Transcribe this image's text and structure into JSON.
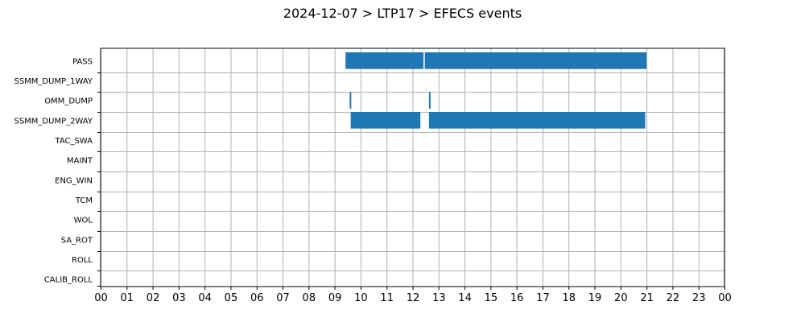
{
  "chart_data": {
    "type": "bar",
    "orientation": "horizontal-timeline",
    "title": "2024-12-07 > LTP17 > EFECS events",
    "xlabel": "",
    "ylabel": "",
    "x_unit": "hour",
    "xlim": [
      0,
      24
    ],
    "x_ticks": [
      0,
      1,
      2,
      3,
      4,
      5,
      6,
      7,
      8,
      9,
      10,
      11,
      12,
      13,
      14,
      15,
      16,
      17,
      18,
      19,
      20,
      21,
      22,
      23,
      24
    ],
    "x_tick_labels": [
      "00",
      "01",
      "02",
      "03",
      "04",
      "05",
      "06",
      "07",
      "08",
      "09",
      "10",
      "11",
      "12",
      "13",
      "14",
      "15",
      "16",
      "17",
      "18",
      "19",
      "20",
      "21",
      "22",
      "23",
      "00"
    ],
    "categories": [
      "PASS",
      "SSMM_DUMP_1WAY",
      "OMM_DUMP",
      "SSMM_DUMP_2WAY",
      "TAC_SWA",
      "MAINT",
      "ENG_WIN",
      "TCM",
      "WOL",
      "SA_ROT",
      "ROLL",
      "CALIB_ROLL"
    ],
    "grid": true,
    "bar_color": "#1f77b4",
    "events": [
      {
        "category": "PASS",
        "start": 9.42,
        "end": 12.42
      },
      {
        "category": "PASS",
        "start": 12.47,
        "end": 21.0
      },
      {
        "category": "OMM_DUMP",
        "start": 9.58,
        "end": 9.63
      },
      {
        "category": "OMM_DUMP",
        "start": 12.63,
        "end": 12.66
      },
      {
        "category": "SSMM_DUMP_2WAY",
        "start": 9.62,
        "end": 12.3
      },
      {
        "category": "SSMM_DUMP_2WAY",
        "start": 12.63,
        "end": 20.95
      }
    ]
  }
}
